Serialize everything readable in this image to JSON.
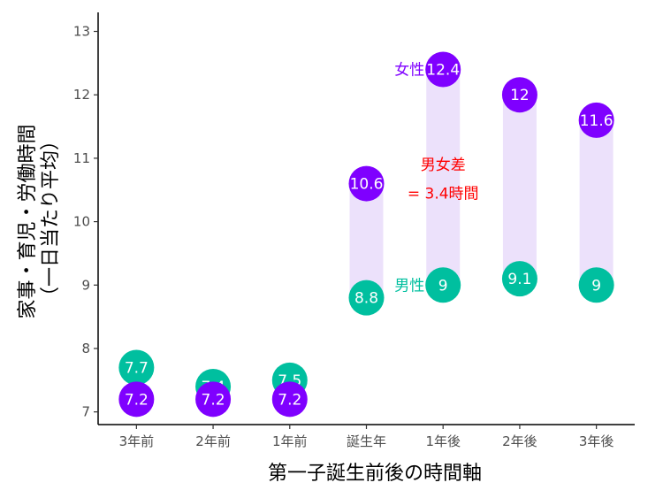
{
  "chart_data": {
    "type": "dumbbell",
    "xlabel": "第一子誕生前後の時間軸",
    "ylabel_lines": [
      "家事・育児・労働時間",
      "（一日当たり平均）"
    ],
    "categories": [
      "3年前",
      "2年前",
      "1年前",
      "誕生年",
      "1年後",
      "2年後",
      "3年後"
    ],
    "ylim": [
      6.8,
      13.3
    ],
    "yticks": [
      7,
      8,
      9,
      10,
      11,
      12,
      13
    ],
    "series": [
      {
        "name": "男性",
        "color": "#00bf9f",
        "values": [
          7.7,
          7.4,
          7.5,
          8.8,
          9,
          9.1,
          9
        ],
        "labels": [
          "7.7",
          "7.4",
          "7.5",
          "8.8",
          "9",
          "9.1",
          "9"
        ]
      },
      {
        "name": "女性",
        "color": "#7f00ff",
        "values": [
          7.2,
          7.2,
          7.2,
          10.6,
          12.4,
          12,
          11.6
        ],
        "labels": [
          "7.2",
          "7.2",
          "7.2",
          "10.6",
          "12.4",
          "12",
          "11.6"
        ]
      }
    ],
    "gap_band_color": "#ece1fb",
    "annotations": {
      "female_label": "女性",
      "male_label": "男性",
      "gap_line1": "男女差",
      "gap_line2": "= 3.4時間",
      "gap_color": "#ff0000"
    },
    "grid": false
  }
}
